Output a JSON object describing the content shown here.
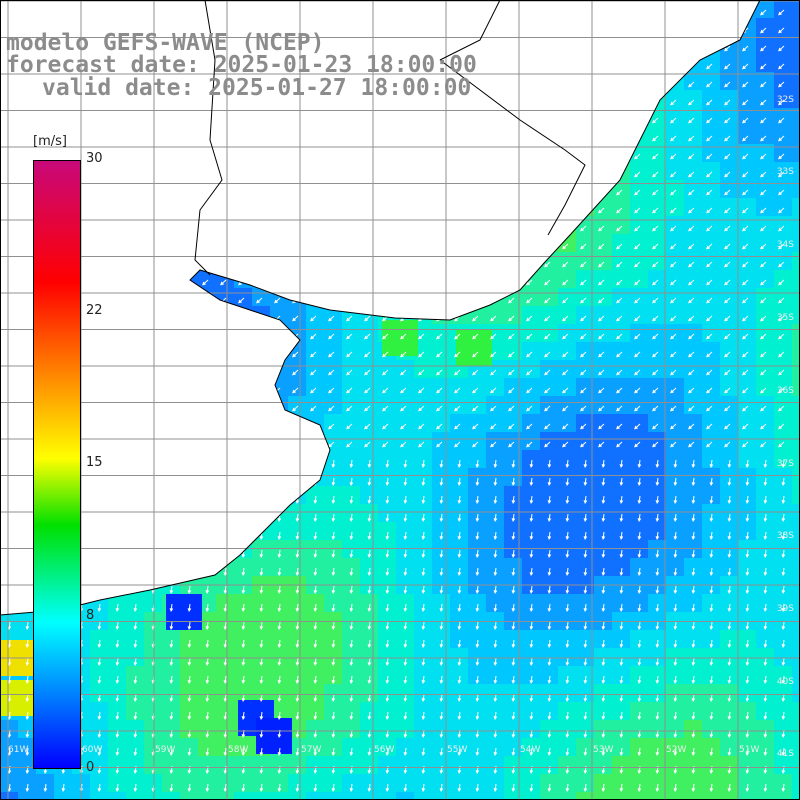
{
  "title": {
    "line1": "modelo GEFS-WAVE (NCEP)",
    "line2": "forecast date: 2025-01-23 18:00:00",
    "line3": "valid date: 2025-01-27 18:00:00"
  },
  "colorbar": {
    "unit": "[m/s]",
    "ticks": [
      "30",
      "22",
      "15",
      "8",
      "0"
    ],
    "tick_values": [
      30,
      22,
      15,
      8,
      0
    ],
    "colors": [
      "#0000ff",
      "#00ffff",
      "#00e000",
      "#ffff00",
      "#ff6a00",
      "#ff0000",
      "#c8087a"
    ]
  },
  "lat_labels": [
    "32S",
    "33S",
    "34S",
    "35S",
    "36S",
    "37S",
    "38S",
    "39S",
    "40S",
    "41S"
  ],
  "lon_labels": [
    "61W",
    "60W",
    "59W",
    "58W",
    "57W",
    "56W",
    "55W",
    "54W",
    "53W",
    "52W",
    "51W"
  ],
  "map_legend": {
    "wind_field": "wind speed shading with white direction arrows",
    "land": "white",
    "coastline": "black"
  }
}
